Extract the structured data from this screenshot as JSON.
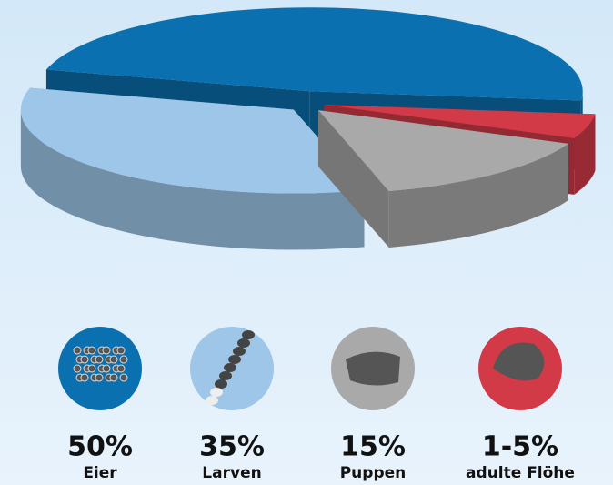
{
  "chart_data": {
    "type": "pie",
    "categories": [
      "Eier",
      "Larven",
      "Puppen",
      "adulte Flöhe"
    ],
    "values": [
      50,
      35,
      15,
      5
    ],
    "value_labels": [
      "50%",
      "35%",
      "15%",
      "1-5%"
    ],
    "colors": [
      "#0b70b0",
      "#9dc6e8",
      "#a9a9a9",
      "#d23a48"
    ]
  }
}
